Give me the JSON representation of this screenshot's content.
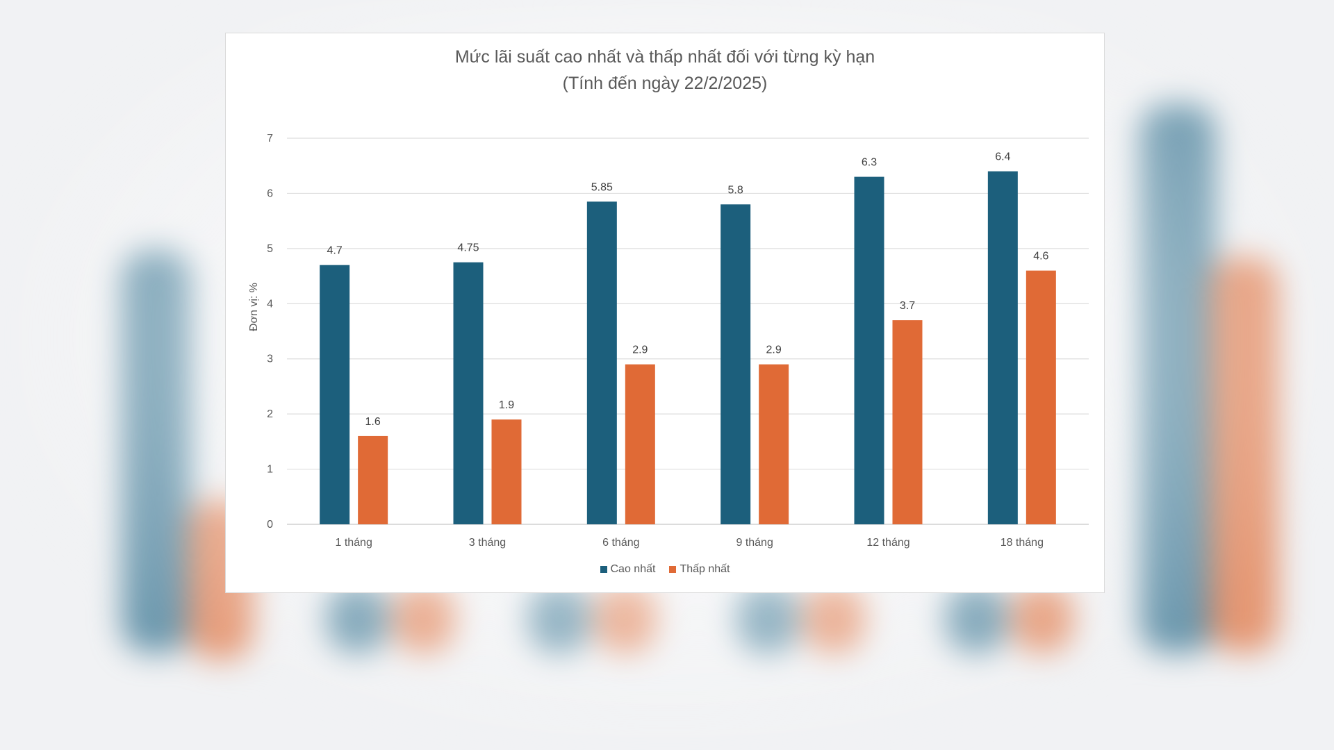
{
  "chart_data": {
    "type": "bar",
    "title": "Mức lãi suất cao nhất và thấp nhất đối với từng kỳ hạn",
    "subtitle": "(Tính đến ngày 22/2/2025)",
    "xlabel": "",
    "ylabel": "Đơn vị: %",
    "ylim": [
      0,
      7
    ],
    "yticks": [
      0,
      1,
      2,
      3,
      4,
      5,
      6,
      7
    ],
    "grid": true,
    "legend_position": "bottom",
    "categories": [
      "1 tháng",
      "3 tháng",
      "6 tháng",
      "9 tháng",
      "12 tháng",
      "18 tháng"
    ],
    "series": [
      {
        "name": "Cao nhất",
        "color": "#1c5f7c",
        "values": [
          4.7,
          4.75,
          5.85,
          5.8,
          6.3,
          6.4
        ],
        "labels": [
          "4.7",
          "4.75",
          "5.85",
          "5.8",
          "6.3",
          "6.4"
        ]
      },
      {
        "name": "Thấp nhất",
        "color": "#e06a36",
        "values": [
          1.6,
          1.9,
          2.9,
          2.9,
          3.7,
          4.6
        ],
        "labels": [
          "1.6",
          "1.9",
          "2.9",
          "2.9",
          "3.7",
          "4.6"
        ]
      }
    ]
  }
}
